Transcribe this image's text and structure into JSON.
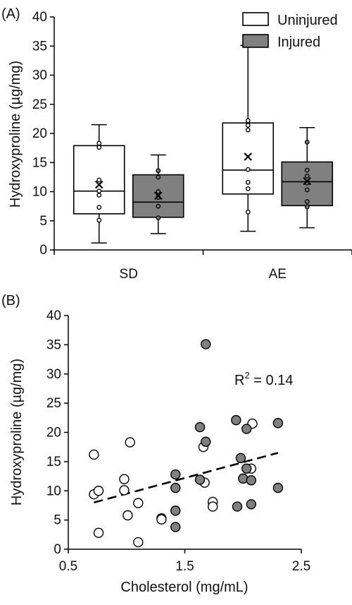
{
  "chart_data": [
    {
      "type": "box",
      "panel_label": "(A)",
      "ylabel": "Hydroxyproline (µg/mg)",
      "ylim": [
        0,
        40
      ],
      "yticks": [
        "0",
        "5",
        "10",
        "15",
        "20",
        "25",
        "30",
        "35",
        "40"
      ],
      "categories": [
        "SD",
        "AE"
      ],
      "legend": {
        "placement": "top-right",
        "entries": [
          "Uninjured",
          "Injured"
        ]
      },
      "colors": {
        "Uninjured": "#ffffff",
        "Injured": "#808080"
      },
      "series": [
        {
          "name": "Uninjured",
          "boxes": [
            {
              "category": "SD",
              "min": 1.2,
              "q1": 6.2,
              "median": 10.1,
              "q3": 17.9,
              "max": 21.5,
              "mean": 11.2,
              "points": [
                5.1,
                7.3,
                9.4,
                10.1,
                12.0,
                17.6,
                18.3
              ]
            },
            {
              "category": "AE",
              "min": 3.2,
              "q1": 9.6,
              "median": 13.7,
              "q3": 21.8,
              "max": 35.1,
              "mean": 16.0,
              "points": [
                6.5,
                10.5,
                11.6,
                13.8,
                20.6,
                21.4,
                22.2
              ]
            }
          ]
        },
        {
          "name": "Injured",
          "boxes": [
            {
              "category": "SD",
              "min": 2.8,
              "q1": 5.6,
              "median": 8.2,
              "q3": 12.9,
              "max": 16.3,
              "mean": 9.3,
              "points": [
                5.5,
                7.5,
                9.0,
                10.0,
                12.5,
                13.6
              ]
            },
            {
              "category": "AE",
              "min": 3.8,
              "q1": 7.6,
              "median": 11.7,
              "q3": 15.1,
              "max": 21.0,
              "mean": 11.8,
              "points": [
                7.4,
                8.3,
                10.3,
                11.5,
                12.7,
                13.7,
                18.5
              ]
            }
          ]
        }
      ]
    },
    {
      "type": "scatter",
      "panel_label": "(B)",
      "xlabel": "Cholesterol (mg/mL)",
      "ylabel": "Hydroxyproline (µg/mg)",
      "xlim": [
        0.5,
        2.5
      ],
      "ylim": [
        0,
        40
      ],
      "xticks": [
        "0.5",
        "1.5",
        "2.5"
      ],
      "yticks": [
        "0",
        "5",
        "10",
        "15",
        "20",
        "25",
        "30",
        "35",
        "40"
      ],
      "annotation": {
        "base": "R",
        "sup": "2",
        "rest": " = 0.14"
      },
      "trendline": {
        "style": "dashed",
        "from": [
          0.72,
          8.0
        ],
        "to": [
          2.3,
          16.5
        ]
      },
      "series": [
        {
          "color": "#ffffff",
          "points": [
            [
              0.72,
              16.2
            ],
            [
              0.72,
              9.4
            ],
            [
              0.76,
              10.0
            ],
            [
              0.76,
              2.8
            ],
            [
              0.98,
              12.0
            ],
            [
              0.98,
              10.1
            ],
            [
              1.01,
              5.8
            ],
            [
              1.03,
              18.3
            ],
            [
              1.1,
              7.9
            ],
            [
              1.1,
              1.2
            ],
            [
              1.3,
              5.3
            ],
            [
              1.3,
              5.1
            ],
            [
              1.66,
              17.5
            ],
            [
              1.67,
              11.4
            ],
            [
              1.74,
              8.1
            ],
            [
              1.74,
              7.3
            ],
            [
              2.07,
              13.8
            ],
            [
              2.08,
              21.5
            ]
          ]
        },
        {
          "color": "#808080",
          "points": [
            [
              1.42,
              12.8
            ],
            [
              1.42,
              10.5
            ],
            [
              1.42,
              6.6
            ],
            [
              1.42,
              3.8
            ],
            [
              1.63,
              20.9
            ],
            [
              1.63,
              11.9
            ],
            [
              1.68,
              35.1
            ],
            [
              1.68,
              18.4
            ],
            [
              1.94,
              22.1
            ],
            [
              1.95,
              7.3
            ],
            [
              1.98,
              15.6
            ],
            [
              2.0,
              12.1
            ],
            [
              2.03,
              13.8
            ],
            [
              2.03,
              20.6
            ],
            [
              2.07,
              11.8
            ],
            [
              2.07,
              7.7
            ],
            [
              2.3,
              21.6
            ],
            [
              2.3,
              10.5
            ]
          ]
        }
      ]
    }
  ]
}
